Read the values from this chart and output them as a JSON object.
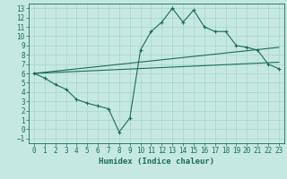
{
  "xlabel": "Humidex (Indice chaleur)",
  "xlim": [
    -0.5,
    23.5
  ],
  "ylim": [
    -1.5,
    13.5
  ],
  "xticks": [
    0,
    1,
    2,
    3,
    4,
    5,
    6,
    7,
    8,
    9,
    10,
    11,
    12,
    13,
    14,
    15,
    16,
    17,
    18,
    19,
    20,
    21,
    22,
    23
  ],
  "yticks": [
    -1,
    0,
    1,
    2,
    3,
    4,
    5,
    6,
    7,
    8,
    9,
    10,
    11,
    12,
    13
  ],
  "background_color": "#c6e8e2",
  "line_color": "#1a6b5a",
  "main_line_x": [
    0,
    1,
    2,
    3,
    4,
    5,
    6,
    7,
    8,
    9,
    10,
    11,
    12,
    13,
    14,
    15,
    16,
    17,
    18,
    19,
    20,
    21,
    22,
    23
  ],
  "main_line_y": [
    6.0,
    5.5,
    4.8,
    4.3,
    3.2,
    2.8,
    2.5,
    2.2,
    -0.3,
    1.2,
    8.5,
    10.5,
    11.5,
    13.0,
    11.5,
    12.8,
    11.0,
    10.5,
    10.5,
    9.0,
    8.8,
    8.5,
    7.0,
    6.5
  ],
  "upper_line_x": [
    0,
    23
  ],
  "upper_line_y": [
    6.0,
    8.8
  ],
  "lower_line_x": [
    0,
    23
  ],
  "lower_line_y": [
    6.0,
    7.2
  ],
  "tick_fontsize": 5.5,
  "label_fontsize": 6.5,
  "grid_color": "#a8d4cc"
}
